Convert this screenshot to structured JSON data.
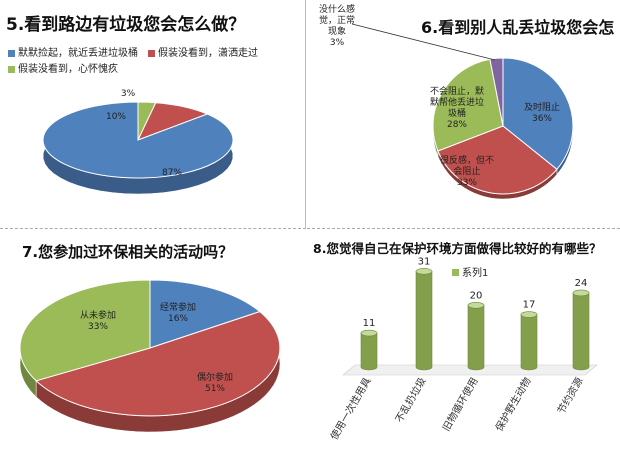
{
  "chart_data": [
    {
      "type": "pie",
      "title": "5.看到路边有垃圾您会怎么做？",
      "legend_position": "top",
      "categories": [
        "默默捡起，就近丢进垃圾桶",
        "假装没看到，潇洒走过",
        "假装没看到，心怀愧疚"
      ],
      "values": [
        87,
        10,
        3
      ],
      "value_labels": [
        "87%",
        "10%",
        "3%"
      ],
      "colors": [
        "#4f81bd",
        "#c0504d",
        "#9bbb59"
      ]
    },
    {
      "type": "pie",
      "title": "6.看到别人乱丢垃圾您会怎",
      "categories": [
        "及时阻止",
        "很反感，但不会阻止",
        "不会阻止，默默帮他丢进垃圾桶",
        "没什么感觉，正常现象"
      ],
      "values": [
        36,
        33,
        28,
        3
      ],
      "value_labels": [
        "36%",
        "33%",
        "28%",
        "3%"
      ],
      "label_lines": [
        [
          "及时阻止",
          "36%"
        ],
        [
          "很反感，但不",
          "会阻止",
          "33%"
        ],
        [
          "不会阻止，默",
          "默帮他丢进垃",
          "圾桶",
          "28%"
        ],
        [
          "没什么感",
          "觉，正常",
          "现象",
          "3%"
        ]
      ],
      "colors": [
        "#4f81bd",
        "#c0504d",
        "#9bbb59",
        "#8064a2"
      ]
    },
    {
      "type": "pie",
      "title": "7.您参加过环保相关的活动吗？",
      "categories": [
        "经常参加",
        "偶尔参加",
        "从未参加"
      ],
      "values": [
        16,
        51,
        33
      ],
      "value_labels": [
        "16%",
        "51%",
        "33%"
      ],
      "colors": [
        "#4f81bd",
        "#c0504d",
        "#9bbb59"
      ]
    },
    {
      "type": "bar",
      "title": "8.您觉得自己在保护环境方面做得比较好的有哪些？",
      "legend_position": "top",
      "categories": [
        "使用一次性用具",
        "不乱扔垃圾",
        "旧物循环使用",
        "保护野生动物",
        "节约资源"
      ],
      "series": [
        {
          "name": "系列1",
          "values": [
            11,
            31,
            20,
            17,
            24
          ]
        }
      ],
      "colors": [
        "#9bbb59"
      ]
    }
  ]
}
